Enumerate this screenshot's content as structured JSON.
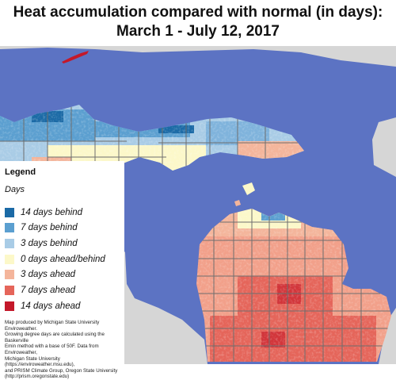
{
  "title": {
    "line1": "Heat accumulation compared with normal (in days):",
    "line2": "March 1 - July 12, 2017"
  },
  "legend": {
    "title": "Legend",
    "subtitle": "Days",
    "items": [
      {
        "label": "14 days behind",
        "color": "#1b6aa6"
      },
      {
        "label": "7 days behind",
        "color": "#5b9fd0"
      },
      {
        "label": "3 days behind",
        "color": "#a9cce6"
      },
      {
        "label": "0 days ahead/behind",
        "color": "#fcf8c9"
      },
      {
        "label": "3 days ahead",
        "color": "#f4b59b"
      },
      {
        "label": "7 days ahead",
        "color": "#e5655a"
      },
      {
        "label": "14 days ahead",
        "color": "#c4182a"
      }
    ]
  },
  "credit": {
    "line1": "Map produced by Michigan State University Enviroweather.",
    "line2": "Growing degree days are calculated using the Baskerville",
    "line3": "Emin method with a base of 50F.  Data from Enviroweather,",
    "line4": "Michigan State University (https://enviroweather.msu.edu),",
    "line5": "and PRISM Climate Group, Oregon State University",
    "line6": "(http://prism.oregonstate.edu)"
  },
  "map_colors": {
    "water": "#5c73c3",
    "land_outside": "#d6d6d6",
    "county_lines": "#6e6e6e"
  }
}
